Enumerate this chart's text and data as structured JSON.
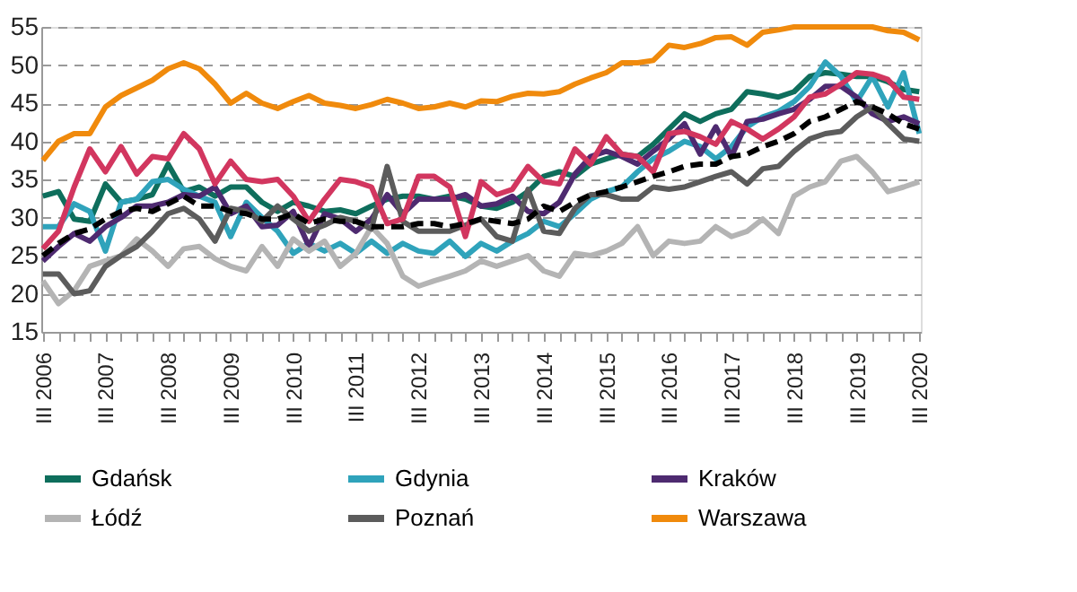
{
  "chart_data": {
    "type": "line",
    "categories": [
      "III 2006",
      null,
      null,
      null,
      "III 2007",
      null,
      null,
      null,
      "III 2008",
      null,
      null,
      null,
      "III 2009",
      null,
      null,
      null,
      "III 2010",
      null,
      null,
      null,
      "III 2011",
      null,
      null,
      null,
      "III 2012",
      null,
      null,
      null,
      "III 2013",
      null,
      null,
      null,
      "III 2014",
      null,
      null,
      null,
      "III 2015",
      null,
      null,
      null,
      "III 2016",
      null,
      null,
      null,
      "III 2017",
      null,
      null,
      null,
      "III 2018",
      null,
      null,
      null,
      "III 2019",
      null,
      null,
      null,
      "III 2020"
    ],
    "series": [
      {
        "name": "Gdańsk",
        "color": "#0e6e5c",
        "values": [
          32.8,
          33.4,
          29.8,
          29.5,
          34.4,
          32,
          32.4,
          33,
          37,
          33.4,
          34,
          32.8,
          34,
          34,
          32,
          30.8,
          32,
          31.5,
          30.8,
          31,
          30.5,
          31.5,
          32.4,
          32.8,
          32.8,
          32.4,
          32.8,
          32.4,
          31.5,
          31.2,
          32,
          33.4,
          35.4,
          36,
          35.4,
          37,
          37.7,
          38.3,
          38,
          39.6,
          41.6,
          43.6,
          42.6,
          43.6,
          44.2,
          46.5,
          46.2,
          45.8,
          46.5,
          48.5,
          49,
          48.8,
          48.5,
          48.5,
          47.8,
          46.8,
          46.5
        ]
      },
      {
        "name": "Gdynia",
        "color": "#2fa3bb",
        "values": [
          28.8,
          28.8,
          31.8,
          30.8,
          25.6,
          32,
          32.4,
          34.7,
          35,
          33.7,
          32.8,
          32,
          27.5,
          32,
          30,
          28.2,
          25.3,
          26.6,
          25.6,
          26.6,
          25.3,
          26.9,
          25.3,
          26.6,
          25.6,
          25.3,
          26.9,
          24.9,
          26.6,
          25.6,
          26.9,
          27.9,
          29.5,
          28.8,
          30.5,
          32.4,
          33.4,
          34,
          36,
          37.7,
          38.7,
          40,
          39.3,
          37.7,
          39.3,
          41.9,
          43.2,
          43.9,
          45.2,
          47.2,
          50.4,
          48.5,
          45.2,
          48.5,
          44.5,
          49,
          41
        ]
      },
      {
        "name": "Kraków",
        "color": "#4e2a70",
        "values": [
          24.3,
          26.2,
          27.9,
          26.9,
          28.8,
          30,
          31.5,
          31.5,
          32,
          33,
          32.8,
          34,
          30.5,
          31.5,
          28.8,
          29,
          30.8,
          26.2,
          30.5,
          29.8,
          28.2,
          29.8,
          33,
          30.5,
          32.4,
          32.4,
          32.4,
          33,
          31.5,
          31.8,
          32.8,
          30.8,
          30.5,
          32,
          35.7,
          38,
          38.7,
          38,
          37,
          38.7,
          40.3,
          42.3,
          38.3,
          41.9,
          38,
          42.6,
          42.9,
          43.6,
          44.2,
          45.5,
          47.2,
          47.2,
          45.8,
          43.6,
          42.6,
          43.2,
          42.3
        ]
      },
      {
        "name": "Łódź",
        "color": "#b4b4b4",
        "values": [
          21.7,
          18.7,
          20.4,
          23.6,
          24.3,
          25,
          27.2,
          25.6,
          23.6,
          25.9,
          26.2,
          24.6,
          23.6,
          23,
          26.2,
          23.6,
          27.2,
          25.6,
          26.9,
          23.6,
          25.3,
          28.8,
          26.6,
          22.3,
          21,
          21.7,
          22.3,
          23,
          24.3,
          23.6,
          24.3,
          25,
          23,
          22.3,
          25.3,
          25,
          25.6,
          26.6,
          28.8,
          25,
          26.9,
          26.6,
          26.9,
          28.8,
          27.5,
          28.2,
          29.8,
          27.9,
          32.8,
          34,
          34.7,
          37.4,
          38,
          36,
          33.4,
          34,
          34.7
        ]
      },
      {
        "name": "Poznań",
        "color": "#5c5c5c",
        "values": [
          22.6,
          22.6,
          20,
          20.4,
          23.6,
          25,
          26.2,
          28.2,
          30.5,
          31.2,
          29.8,
          26.9,
          31.2,
          30.8,
          29.5,
          31.5,
          29.8,
          28.2,
          29,
          30,
          29.5,
          28.5,
          36.7,
          29.5,
          28.2,
          28.2,
          28.2,
          29,
          29.8,
          27.5,
          26.9,
          33.7,
          28.2,
          27.9,
          31.2,
          33,
          33,
          32.4,
          32.4,
          34,
          33.7,
          34,
          34.7,
          35.4,
          36,
          34.4,
          36.4,
          36.7,
          38.7,
          40.3,
          41,
          41.3,
          43.2,
          44.5,
          42.3,
          40.3,
          40
        ]
      },
      {
        "name": "Warszawa",
        "color": "#f08a0c",
        "values": [
          37.5,
          40,
          41,
          41,
          44.5,
          46,
          47,
          48,
          49.5,
          50.3,
          49.5,
          47.5,
          45,
          46.3,
          45,
          44.3,
          45.2,
          46,
          45,
          44.7,
          44.3,
          44.8,
          45.5,
          45,
          44.3,
          44.5,
          45,
          44.5,
          45.3,
          45.2,
          45.9,
          46.3,
          46.2,
          46.5,
          47.5,
          48.3,
          49,
          50.3,
          50.3,
          50.6,
          52.6,
          52.3,
          52.8,
          53.6,
          53.7,
          52.6,
          54.3,
          54.6,
          55,
          55,
          55,
          55,
          55,
          55,
          54.5,
          54.3,
          53.3
        ]
      },
      {
        "color": "#d2365f",
        "values": [
          25.9,
          28.2,
          34,
          39,
          36,
          39.3,
          35.7,
          38,
          37.7,
          41,
          39,
          34.4,
          37.4,
          35,
          34.7,
          35,
          32.8,
          29.5,
          32.4,
          35,
          34.7,
          34,
          29.2,
          29.8,
          35.4,
          35.4,
          34,
          27.5,
          34.7,
          33,
          33.7,
          36.7,
          34.7,
          34.4,
          39,
          37,
          40.6,
          38.3,
          38,
          36,
          41,
          41.3,
          40.6,
          39.6,
          42.6,
          41.6,
          40.3,
          41.6,
          43.2,
          45.8,
          46.2,
          47.5,
          49,
          48.8,
          48.1,
          45.8,
          45.5
        ]
      },
      {
        "color": "#000000",
        "line_style": "dashed",
        "values": [
          25,
          26.6,
          27.9,
          28.5,
          29.8,
          30.8,
          31.2,
          30.8,
          31.8,
          32.8,
          31.5,
          31.5,
          30.8,
          30.5,
          29.8,
          29.8,
          30.5,
          29.2,
          29.8,
          29.5,
          29.5,
          28.8,
          28.8,
          28.8,
          29.2,
          29.2,
          28.8,
          29.2,
          29.8,
          29.5,
          29.2,
          29.8,
          31.5,
          30.8,
          32,
          33,
          33.4,
          34,
          34.7,
          35.4,
          36,
          36.7,
          37,
          37,
          38,
          38.3,
          39.3,
          40,
          41,
          42.6,
          43.2,
          44.2,
          45.2,
          44.5,
          43.6,
          42.3,
          41.6
        ]
      }
    ],
    "ylim": [
      15,
      55
    ],
    "yticks": [
      15,
      20,
      25,
      30,
      35,
      40,
      45,
      50,
      55
    ],
    "grid": "y",
    "legend": "bottom",
    "marker": "none",
    "line_style": "solid"
  }
}
